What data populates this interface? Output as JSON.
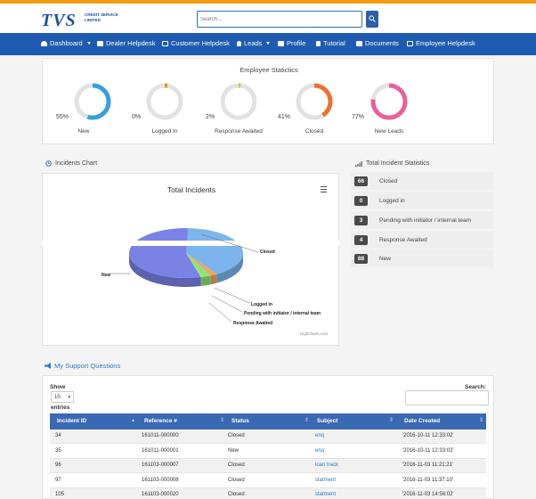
{
  "header": {
    "logo_text": "TVS",
    "logo_sub": "CREDIT SERVICE LIMITED",
    "search_placeholder": "Search..."
  },
  "nav": [
    {
      "label": "Dashboard",
      "icon": "dashboard-icon",
      "dropdown": true
    },
    {
      "label": "Dealer Helpdesk",
      "icon": "tag-icon"
    },
    {
      "label": "Customer Helpdesk",
      "icon": "envelope-icon"
    },
    {
      "label": "Leads",
      "icon": "user-icon",
      "dropdown": true
    },
    {
      "label": "Profile",
      "icon": "id-card-icon"
    },
    {
      "label": "Tutorial",
      "icon": "hourglass-icon"
    },
    {
      "label": "Documents",
      "icon": "book-icon"
    },
    {
      "label": "Employee Helpdesk",
      "icon": "envelope-icon"
    }
  ],
  "employee_stats": {
    "title": "Employee Statictics",
    "gauges": [
      {
        "pct_text": "55%",
        "value": 0.55,
        "label": "New",
        "color": "#3b9de0"
      },
      {
        "pct_text": "0%",
        "value": 0.0,
        "label": "Logged In",
        "color": "#e8902e"
      },
      {
        "pct_text": "2%",
        "value": 0.02,
        "label": "Response Awaited",
        "color": "#b5d42a"
      },
      {
        "pct_text": "41%",
        "value": 0.41,
        "label": "Closed",
        "color": "#e8732e"
      },
      {
        "pct_text": "77%",
        "value": 0.77,
        "label": "New Leads",
        "color": "#e8609c"
      }
    ]
  },
  "incidents_chart": {
    "section_title": "Incidents Chart",
    "chart_title": "Total Incidents",
    "credits": "Highcharts.com"
  },
  "chart_data": {
    "type": "pie",
    "title": "Total Incidents",
    "slices": [
      {
        "name": "New",
        "value": 88,
        "color": "#7b82e6"
      },
      {
        "name": "Closed",
        "value": 66,
        "color": "#7cb5ec"
      },
      {
        "name": "Logged in",
        "value": 0,
        "color": "#90ed7d"
      },
      {
        "name": "Pending with initiator / internal team",
        "value": 3,
        "color": "#f7a35c"
      },
      {
        "name": "Response Awaited",
        "value": 4,
        "color": "#8ee27a"
      }
    ]
  },
  "incident_stats": {
    "title": "Total Incident Statistics",
    "rows": [
      {
        "count": "66",
        "label": "Closed"
      },
      {
        "count": "0",
        "label": "Logged in"
      },
      {
        "count": "3",
        "label": "Pending with initiator / internal team"
      },
      {
        "count": "4",
        "label": "Response Awaited"
      },
      {
        "count": "88",
        "label": "New"
      }
    ]
  },
  "support": {
    "title": "My Support Questions",
    "show_label": "Show",
    "show_value": "10",
    "entries_label": "entries",
    "search_label": "Search:",
    "columns": [
      "Incident ID",
      "Reference #",
      "Status",
      "Subject",
      "Date Created"
    ],
    "rows": [
      [
        "34",
        "161011-000000",
        "Closed",
        "enq",
        "'2016-10-11 12:33:02'"
      ],
      [
        "35",
        "161011-000001",
        "New",
        "enq",
        "'2016-10-11 12:33:02'"
      ],
      [
        "96",
        "161103-000007",
        "Closed",
        "loan track",
        "'2016-11-03 11:21:21'"
      ],
      [
        "97",
        "161103-000008",
        "Closed",
        "statment",
        "'2016-11-03 11:37:10'"
      ],
      [
        "105",
        "161103-000020",
        "Closed",
        "statment",
        "'2016-11-03 14:56:02'"
      ]
    ]
  }
}
